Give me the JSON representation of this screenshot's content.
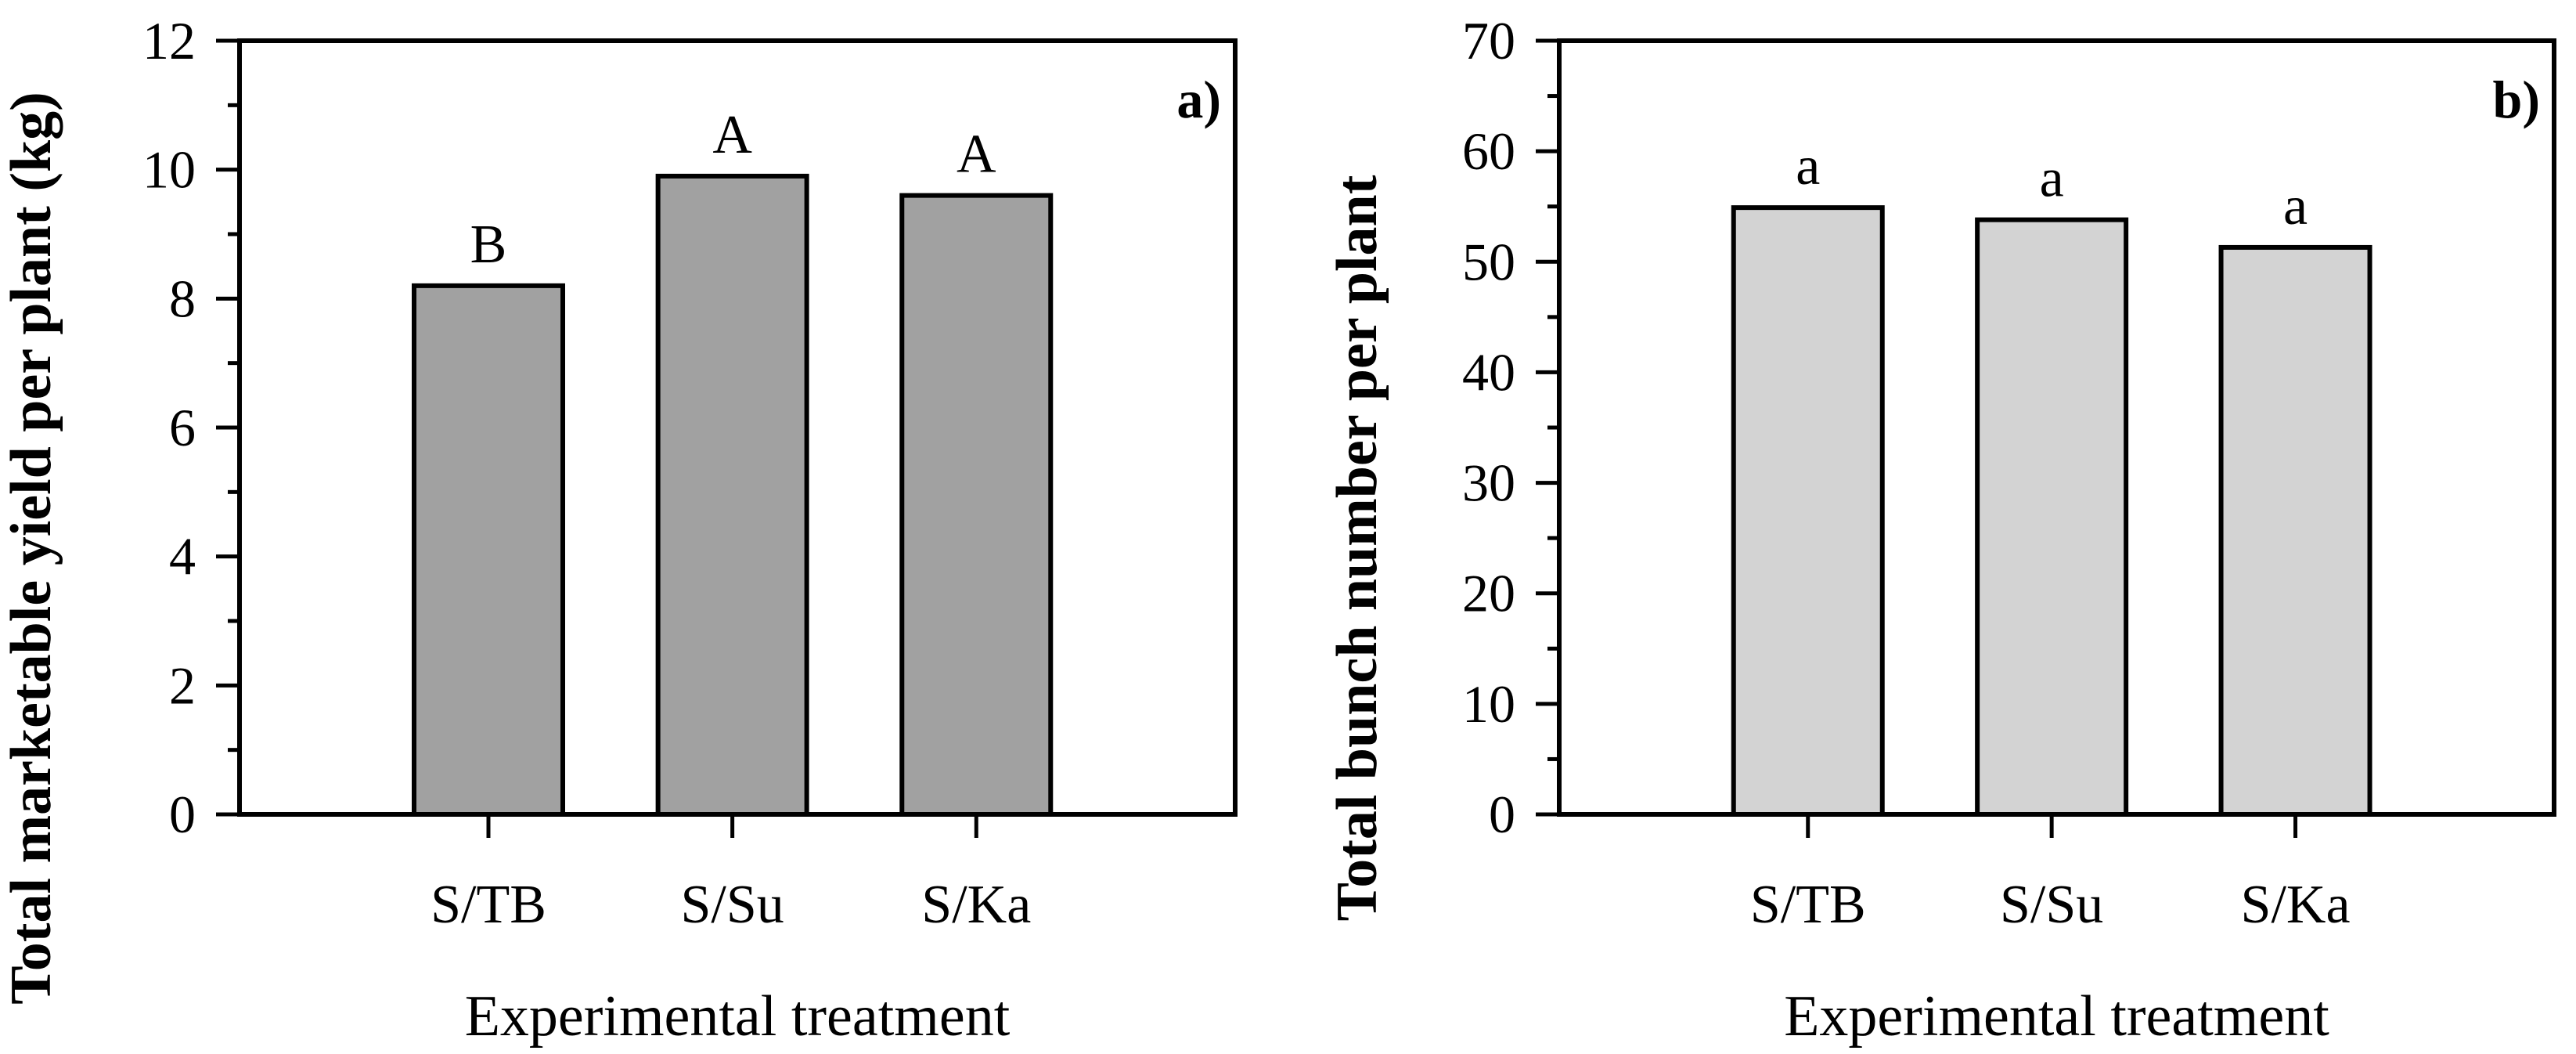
{
  "figure": {
    "background": "#ffffff",
    "axis_color": "#000000",
    "panel_count": 2
  },
  "chart_data": [
    {
      "type": "bar",
      "panel_label": "a)",
      "title": "",
      "ylabel": "Total marketable yield per plant (kg)",
      "xlabel": "Experimental treatment",
      "categories": [
        "S/TB",
        "S/Su",
        "S/Ka"
      ],
      "values": [
        8.2,
        9.9,
        9.6
      ],
      "significance_letters": [
        "B",
        "A",
        "A"
      ],
      "ylim": [
        0,
        12
      ],
      "yticks": [
        0,
        2,
        4,
        6,
        8,
        10,
        12
      ],
      "ytick_minor_step": 1,
      "grid": false,
      "legend_position": "none",
      "bar_color": "#a1a1a1",
      "bar_border_color": "#000000",
      "axis_color": "#000000"
    },
    {
      "type": "bar",
      "panel_label": "b)",
      "title": "",
      "ylabel": "Total bunch number per plant",
      "xlabel": "Experimental treatment",
      "categories": [
        "S/TB",
        "S/Su",
        "S/Ka"
      ],
      "values": [
        54.9,
        53.8,
        51.3
      ],
      "significance_letters": [
        "a",
        "a",
        "a"
      ],
      "ylim": [
        0,
        70
      ],
      "yticks": [
        0,
        10,
        20,
        30,
        40,
        50,
        60,
        70
      ],
      "ytick_minor_step": 5,
      "grid": false,
      "legend_position": "none",
      "bar_color": "#d3d3d3",
      "bar_border_color": "#000000",
      "axis_color": "#000000"
    }
  ]
}
